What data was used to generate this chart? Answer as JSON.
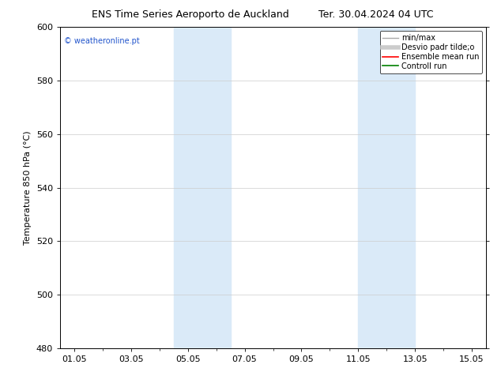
{
  "title": "ENS Time Series Aeroporto de Auckland",
  "title2": "Ter. 30.04.2024 04 UTC",
  "ylabel": "Temperature 850 hPa (°C)",
  "ylim": [
    480,
    600
  ],
  "yticks": [
    480,
    500,
    520,
    540,
    560,
    580,
    600
  ],
  "xtick_labels": [
    "01.05",
    "03.05",
    "05.05",
    "07.05",
    "09.05",
    "11.05",
    "13.05",
    "15.05"
  ],
  "xtick_positions": [
    1,
    3,
    5,
    7,
    9,
    11,
    13,
    15
  ],
  "xlim": [
    0.5,
    15.5
  ],
  "shaded_bands": [
    {
      "x_start": 4.5,
      "x_end": 6.5,
      "color": "#daeaf8"
    },
    {
      "x_start": 11.0,
      "x_end": 13.0,
      "color": "#daeaf8"
    }
  ],
  "watermark_text": "© weatheronline.pt",
  "watermark_color": "#2255cc",
  "legend_entries": [
    {
      "label": "min/max",
      "color": "#aaaaaa",
      "lw": 1.0,
      "ls": "-"
    },
    {
      "label": "Desvio padr tilde;o",
      "color": "#cccccc",
      "lw": 4,
      "ls": "-"
    },
    {
      "label": "Ensemble mean run",
      "color": "red",
      "lw": 1.2,
      "ls": "-"
    },
    {
      "label": "Controll run",
      "color": "green",
      "lw": 1.2,
      "ls": "-"
    }
  ],
  "background_color": "#ffffff",
  "plot_bg_color": "#ffffff",
  "border_color": "#000000",
  "grid_color": "#cccccc",
  "tick_font_size": 8,
  "ylabel_font_size": 8,
  "title_font_size": 9,
  "legend_font_size": 7,
  "watermark_font_size": 7
}
